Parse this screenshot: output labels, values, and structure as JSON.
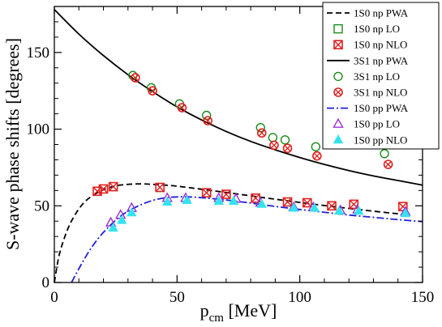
{
  "chart_data": {
    "type": "scatter",
    "xlabel": "p",
    "xlabel_sub": "cm",
    "xlabel_unit": " [MeV]",
    "ylabel": "S-wave phase shifts [degrees]",
    "xlim": [
      0,
      150
    ],
    "ylim": [
      0,
      180
    ],
    "xticks": [
      0,
      50,
      100,
      150
    ],
    "yticks": [
      0,
      50,
      100,
      150
    ],
    "grid": false,
    "legend_position": "top-right",
    "series": [
      {
        "name": "1S0 np PWA",
        "kind": "line",
        "style": "dashed",
        "color": "#000000",
        "x": [
          0,
          2,
          5,
          8,
          12,
          16,
          20,
          25,
          30,
          35,
          40,
          45,
          50,
          60,
          70,
          80,
          90,
          100,
          110,
          120,
          130,
          140,
          145
        ],
        "y": [
          0,
          18,
          33,
          43,
          52,
          57,
          60.5,
          63,
          64,
          64.3,
          64,
          63.5,
          62.8,
          60.8,
          58.7,
          56.5,
          54.3,
          52.2,
          50.2,
          48.3,
          46.5,
          44.8,
          44.0
        ]
      },
      {
        "name": "1S0 np LO",
        "kind": "marker",
        "marker": "square-open",
        "color": "#1a8c1a",
        "x": [],
        "y": []
      },
      {
        "name": "1S0 np NLO",
        "kind": "marker",
        "marker": "square-cross",
        "color": "#e02020",
        "x": [
          17.5,
          20,
          24,
          43,
          62,
          70,
          82,
          95,
          103,
          113,
          122,
          142
        ],
        "y": [
          59.5,
          61,
          62.5,
          62,
          58.5,
          57.5,
          55,
          52.5,
          52,
          50,
          51,
          49.5
        ]
      },
      {
        "name": "3S1 np PWA",
        "kind": "line",
        "style": "solid",
        "color": "#000000",
        "x": [
          0,
          10,
          20,
          30,
          40,
          50,
          60,
          70,
          80,
          90,
          100,
          110,
          120,
          130,
          140,
          150
        ],
        "y": [
          178,
          162,
          148,
          135.5,
          124.5,
          114.5,
          106,
          98.5,
          92,
          86.5,
          81.5,
          77,
          73,
          69.5,
          66.5,
          63.5
        ]
      },
      {
        "name": "3S1 np LO",
        "kind": "marker",
        "marker": "circle-open",
        "color": "#1a8c1a",
        "x": [
          32,
          39.5,
          51,
          62,
          84,
          89,
          94,
          106.5,
          134.5
        ],
        "y": [
          135,
          127,
          116.5,
          109,
          101,
          94.5,
          93,
          88.5,
          84
        ]
      },
      {
        "name": "3S1 np NLO",
        "kind": "marker",
        "marker": "circle-cross",
        "color": "#e02020",
        "x": [
          33,
          40,
          52,
          62.5,
          84.5,
          89.5,
          95,
          107,
          136
        ],
        "y": [
          133.5,
          125,
          114,
          105.5,
          97.5,
          89.5,
          87.5,
          82.5,
          77
        ]
      },
      {
        "name": "1S0 pp PWA",
        "kind": "line",
        "style": "dashdot",
        "color": "#1f1fd8",
        "x": [
          7,
          10,
          14,
          18,
          22,
          26,
          30,
          35,
          40,
          45,
          50,
          55,
          60,
          70,
          80,
          90,
          100,
          110,
          120,
          130,
          140,
          150
        ],
        "y": [
          0,
          9,
          20,
          29,
          36,
          42,
          46.5,
          50.5,
          53.5,
          55.2,
          55.8,
          55.8,
          55.3,
          53.8,
          51.8,
          49.6,
          47.6,
          45.8,
          44.0,
          42.5,
          41.0,
          39.7
        ]
      },
      {
        "name": "1S0 pp LO",
        "kind": "marker",
        "marker": "triangle-open",
        "color": "#9b30d9",
        "x": [
          23,
          27,
          31.5,
          46,
          53.5,
          67,
          74,
          84,
          97.5,
          105.5,
          116.5,
          123.5,
          143
        ],
        "y": [
          39,
          44,
          48.5,
          55,
          55,
          55,
          54.5,
          52,
          49,
          49,
          47,
          47.5,
          46
        ]
      },
      {
        "name": "1S0 pp NLO",
        "kind": "marker",
        "marker": "triangle-filled",
        "color": "#33e3f0",
        "x": [
          24,
          27.5,
          31.5,
          46,
          54,
          67,
          73,
          84.5,
          97.5,
          106,
          116,
          124,
          143
        ],
        "y": [
          35.5,
          40.5,
          45.5,
          52.5,
          53.5,
          53,
          53,
          51,
          48.5,
          48.5,
          46.5,
          46.5,
          45
        ]
      }
    ]
  }
}
